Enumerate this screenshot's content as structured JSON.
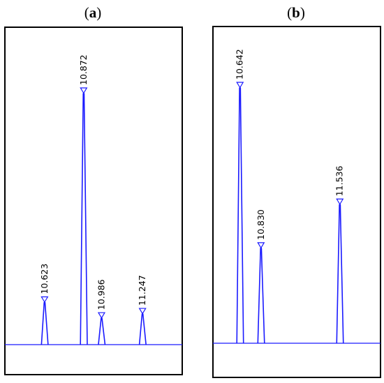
{
  "chart_data": [
    {
      "type": "line",
      "panel": "a",
      "title_open": "(",
      "title_letter": "a",
      "title_close": ")",
      "xlabel": "",
      "ylabel": "",
      "grid": false,
      "xlim": [
        10.37,
        11.5
      ],
      "ylim": [
        0,
        100
      ],
      "color": "#1a1aff",
      "peaks": [
        {
          "label": "10.623",
          "x": 10.623,
          "height": 16.8,
          "width": 0.012
        },
        {
          "label": "10.872",
          "x": 10.872,
          "height": 100,
          "width": 0.014
        },
        {
          "label": "10.986",
          "x": 10.986,
          "height": 10.5,
          "width": 0.012
        },
        {
          "label": "11.247",
          "x": 11.247,
          "height": 12.2,
          "width": 0.011
        }
      ]
    },
    {
      "type": "line",
      "panel": "b",
      "title_open": "(",
      "title_letter": "b",
      "title_close": ")",
      "xlabel": "",
      "ylabel": "",
      "grid": false,
      "xlim": [
        10.4,
        11.9
      ],
      "ylim": [
        0,
        100
      ],
      "color": "#1a1aff",
      "peaks": [
        {
          "label": "10.642",
          "x": 10.642,
          "height": 100,
          "width": 0.012
        },
        {
          "label": "10.830",
          "x": 10.83,
          "height": 37.2,
          "width": 0.011
        },
        {
          "label": "11.536",
          "x": 11.536,
          "height": 54.3,
          "width": 0.009
        }
      ]
    }
  ]
}
